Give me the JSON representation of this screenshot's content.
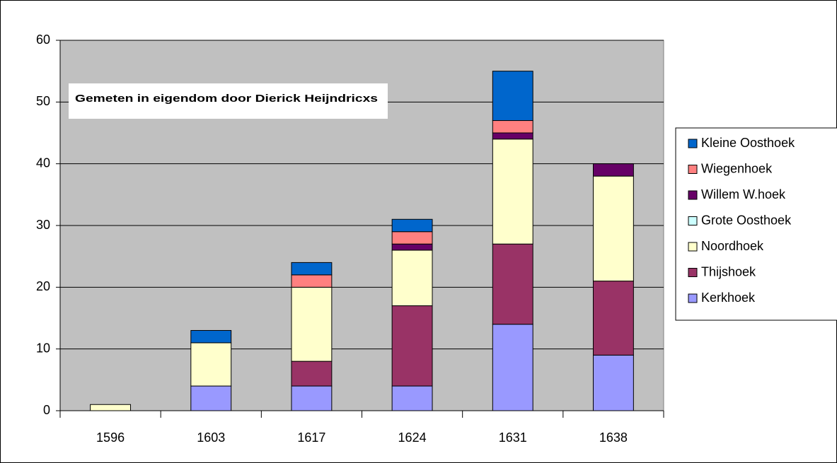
{
  "chart_data": {
    "type": "stacked_bar",
    "annotation": "Gemeten in eigendom door Dierick Heijndricxs",
    "categories": [
      "1596",
      "1603",
      "1617",
      "1624",
      "1631",
      "1638"
    ],
    "series": [
      {
        "name": "Kerkhoek",
        "color": "#9999ff",
        "values": [
          0,
          4,
          4,
          4,
          14,
          9
        ]
      },
      {
        "name": "Thijshoek",
        "color": "#993366",
        "values": [
          0,
          0,
          4,
          13,
          13,
          12
        ]
      },
      {
        "name": "Noordhoek",
        "color": "#ffffcc",
        "values": [
          1,
          7,
          12,
          9,
          17,
          17
        ]
      },
      {
        "name": "Grote Oosthoek",
        "color": "#ccffff",
        "values": [
          0,
          0,
          0,
          0,
          0,
          0
        ]
      },
      {
        "name": "Willem W.hoek",
        "color": "#660066",
        "values": [
          0,
          0,
          0,
          1,
          1,
          2
        ]
      },
      {
        "name": "Wiegenhoek",
        "color": "#ff8080",
        "values": [
          0,
          0,
          2,
          2,
          2,
          0
        ]
      },
      {
        "name": "Kleine Oosthoek",
        "color": "#0066cc",
        "values": [
          0,
          2,
          2,
          2,
          8,
          0
        ]
      }
    ],
    "ylim": [
      0,
      60
    ],
    "yticks": [
      0,
      10,
      20,
      30,
      40,
      50,
      60
    ],
    "grid": true,
    "legend": "right"
  }
}
